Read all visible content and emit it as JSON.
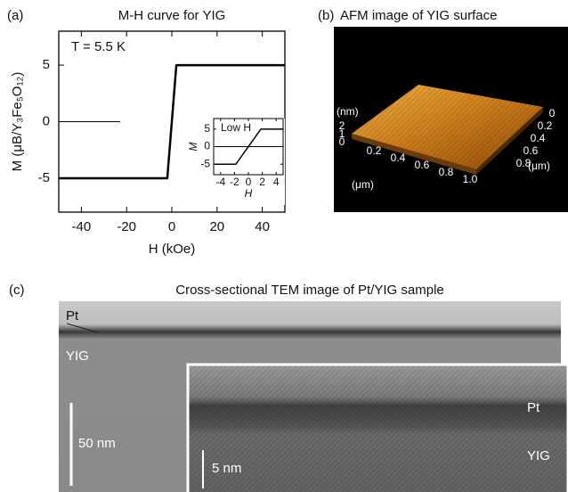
{
  "chart_data": [
    {
      "type": "line",
      "label": "(a)",
      "title": "M-H curve for YIG",
      "annotation": "T = 5.5 K",
      "xlabel": "H (kOe)",
      "ylabel": "M (μB/Y₃Fe₅O₁₂)",
      "x": [
        -50,
        -2,
        2,
        50
      ],
      "series": [
        {
          "color": "#000000",
          "values": [
            -5,
            -5,
            5,
            5
          ]
        }
      ],
      "xlim": [
        -50,
        50
      ],
      "ylim": [
        -8,
        8
      ],
      "xticks": [
        -40,
        -20,
        0,
        20,
        40
      ],
      "yticks": [
        -5,
        0,
        5
      ]
    },
    {
      "type": "line",
      "title": "Low H",
      "xlabel": "H",
      "ylabel": "M",
      "x": [
        -5,
        -1.8,
        1.8,
        5
      ],
      "series": [
        {
          "color": "#000000",
          "values": [
            -5,
            -5,
            5,
            5
          ]
        }
      ],
      "xlim": [
        -5,
        5
      ],
      "ylim": [
        -8,
        8
      ],
      "xticks": [
        -4,
        -2,
        0,
        2,
        4
      ],
      "yticks": [
        -5,
        0,
        5
      ]
    }
  ],
  "afm": {
    "label": "(b)",
    "title": "AFM image of YIG surface",
    "z_unit": "(nm)",
    "z_ticks": [
      "2",
      "1",
      "0"
    ],
    "x_ticks": [
      "0.2",
      "0.4",
      "0.6",
      "0.8",
      "1.0"
    ],
    "x_unit": "(μm)",
    "y_ticks": [
      "0",
      "0.2",
      "0.4",
      "0.6",
      "0.8"
    ],
    "y_unit": "(μm)"
  },
  "tem": {
    "label": "(c)",
    "title": "Cross-sectional TEM image of Pt/YIG sample",
    "pt": "Pt",
    "yig": "YIG",
    "scale": "50 nm",
    "inset_pt": "Pt",
    "inset_yig": "YIG",
    "inset_scale": "5 nm"
  }
}
